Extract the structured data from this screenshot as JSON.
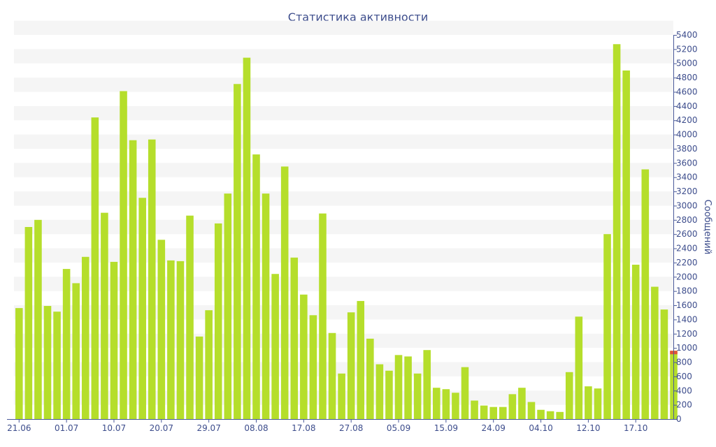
{
  "chart_data": {
    "type": "bar",
    "title": "Статистика активности",
    "ylabel": "Сообщений",
    "ylim": [
      0,
      5400
    ],
    "y_ticks": [
      0,
      200,
      400,
      600,
      800,
      1000,
      1200,
      1400,
      1600,
      1800,
      2000,
      2200,
      2400,
      2600,
      2800,
      3000,
      3200,
      3400,
      3600,
      3800,
      4000,
      4200,
      4400,
      4600,
      4800,
      5000,
      5200,
      5400
    ],
    "x_tick_labels": [
      {
        "label": "21.06",
        "index": 0
      },
      {
        "label": "01.07",
        "index": 5
      },
      {
        "label": "10.07",
        "index": 10
      },
      {
        "label": "20.07",
        "index": 15
      },
      {
        "label": "29.07",
        "index": 20
      },
      {
        "label": "08.08",
        "index": 25
      },
      {
        "label": "17.08",
        "index": 30
      },
      {
        "label": "27.08",
        "index": 35
      },
      {
        "label": "05.09",
        "index": 40
      },
      {
        "label": "15.09",
        "index": 45
      },
      {
        "label": "24.09",
        "index": 50
      },
      {
        "label": "04.10",
        "index": 55
      },
      {
        "label": "12.10",
        "index": 60
      },
      {
        "label": "17.10",
        "index": 65
      }
    ],
    "values": [
      1560,
      2700,
      2800,
      1590,
      1510,
      2110,
      1910,
      2280,
      4240,
      2900,
      2210,
      4610,
      3920,
      3110,
      3930,
      2520,
      2230,
      2220,
      2860,
      1160,
      1530,
      2750,
      3170,
      4710,
      5080,
      3720,
      3170,
      2040,
      3550,
      2270,
      1750,
      1460,
      2890,
      1210,
      640,
      1500,
      1660,
      1130,
      770,
      680,
      900,
      880,
      640,
      970,
      440,
      420,
      370,
      730,
      260,
      190,
      170,
      170,
      350,
      440,
      240,
      130,
      110,
      100,
      660,
      1440,
      460,
      430,
      2600,
      5270,
      4900,
      2170,
      3510,
      1860,
      1540,
      960
    ],
    "highlight_last": true,
    "colors": {
      "bar": "#b5de2b",
      "highlight": "#e0533a",
      "text": "#3d4d8c",
      "stripe": "#f5f5f5",
      "axis": "#4a5a9a"
    }
  }
}
